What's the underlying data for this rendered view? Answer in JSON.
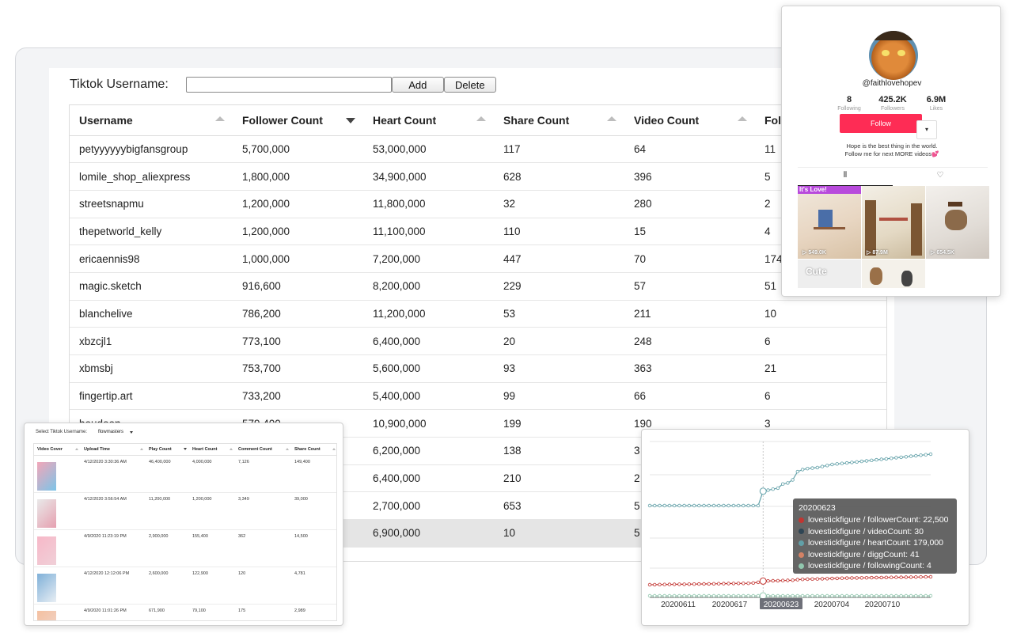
{
  "form": {
    "label": "Tiktok Username:",
    "input_value": "",
    "input_placeholder": "",
    "add_label": "Add",
    "delete_label": "Delete"
  },
  "users_table": {
    "columns": [
      "Username",
      "Follower Count",
      "Heart Count",
      "Share Count",
      "Video Count",
      "Fol"
    ],
    "rows": [
      [
        "petyyyyyybigfansgroup",
        "5,700,000",
        "53,000,000",
        "117",
        "64",
        "11"
      ],
      [
        "lomile_shop_aliexpress",
        "1,800,000",
        "34,900,000",
        "628",
        "396",
        "5"
      ],
      [
        "streetsnapmu",
        "1,200,000",
        "11,800,000",
        "32",
        "280",
        "2"
      ],
      [
        "thepetworld_kelly",
        "1,200,000",
        "11,100,000",
        "110",
        "15",
        "4"
      ],
      [
        "ericaennis98",
        "1,000,000",
        "7,200,000",
        "447",
        "70",
        "174"
      ],
      [
        "magic.sketch",
        "916,600",
        "8,200,000",
        "229",
        "57",
        "51"
      ],
      [
        "blanchelive",
        "786,200",
        "11,200,000",
        "53",
        "211",
        "10"
      ],
      [
        "xbzcjl1",
        "773,100",
        "6,400,000",
        "20",
        "248",
        "6"
      ],
      [
        "xbmsbj",
        "753,700",
        "5,600,000",
        "93",
        "363",
        "21"
      ],
      [
        "fingertip.art",
        "733,200",
        "5,400,000",
        "99",
        "66",
        "6"
      ],
      [
        "boudoon",
        "579,400",
        "10,900,000",
        "199",
        "190",
        "3"
      ],
      [
        "",
        "",
        "6,200,000",
        "138",
        "3",
        ""
      ],
      [
        "",
        "",
        "6,400,000",
        "210",
        "2",
        ""
      ],
      [
        "",
        "",
        "2,700,000",
        "653",
        "5",
        ""
      ],
      [
        "",
        "",
        "6,900,000",
        "10",
        "5",
        ""
      ]
    ],
    "selected_row": 14
  },
  "profile": {
    "handle": "@faithlovehopev",
    "stats": [
      {
        "value": "8",
        "label": "Following"
      },
      {
        "value": "425.2K",
        "label": "Followers"
      },
      {
        "value": "6.9M",
        "label": "Likes"
      }
    ],
    "follow_label": "Follow",
    "more_label": "▾",
    "bio_line1": "Hope is the best thing in the world.",
    "bio_line2": "Follow me for next MORE videos💕",
    "videos": [
      {
        "plays": "549.0K",
        "overlay": "It's Love!"
      },
      {
        "plays": "87.9M",
        "overlay": ""
      },
      {
        "plays": "654.5K",
        "overlay": ""
      },
      {
        "plays": "",
        "overlay": "Cute"
      },
      {
        "plays": "",
        "overlay": ""
      },
      {
        "plays": "",
        "overlay": ""
      }
    ]
  },
  "video_table": {
    "select_label": "Select Tiktok Username:",
    "selected_username": "flowmasters",
    "columns": [
      "Video Cover",
      "Upload Time",
      "Play Count",
      "Heart Count",
      "Comment Count",
      "Share Count"
    ],
    "rows": [
      [
        "",
        "4/12/2020 3:30:36 AM",
        "46,400,000",
        "4,000,000",
        "7,126",
        "149,400"
      ],
      [
        "",
        "4/12/2020 3:56:54 AM",
        "11,200,000",
        "1,200,000",
        "3,349",
        "39,000"
      ],
      [
        "",
        "4/9/2020 11:23:19 PM",
        "2,900,000",
        "155,400",
        "362",
        "14,500"
      ],
      [
        "",
        "4/12/2020 12:12:06 PM",
        "2,600,000",
        "122,900",
        "120",
        "4,781"
      ],
      [
        "",
        "4/9/2020 11:01:26 PM",
        "671,900",
        "79,100",
        "175",
        "2,989"
      ]
    ]
  },
  "chart_data": {
    "type": "line",
    "x_ticks": [
      "20200611",
      "20200617",
      "20200623",
      "20200704",
      "20200710"
    ],
    "highlight_x": "20200623",
    "series": [
      {
        "name": "lovestickfigure / followerCount",
        "color": "#c23531"
      },
      {
        "name": "lovestickfigure / videoCount",
        "color": "#2f4554"
      },
      {
        "name": "lovestickfigure / heartCount",
        "color": "#61a0a8"
      },
      {
        "name": "lovestickfigure / diggCount",
        "color": "#d48265"
      },
      {
        "name": "lovestickfigure / followingCount",
        "color": "#91c7ae"
      }
    ],
    "tooltip": {
      "title": "20200623",
      "rows": [
        {
          "label": "lovestickfigure / followerCount: 22,500",
          "color": "#c23531"
        },
        {
          "label": "lovestickfigure / videoCount: 30",
          "color": "#2f4554"
        },
        {
          "label": "lovestickfigure / heartCount: 179,000",
          "color": "#61a0a8"
        },
        {
          "label": "lovestickfigure / diggCount: 41",
          "color": "#d48265"
        },
        {
          "label": "lovestickfigure / followingCount: 4",
          "color": "#91c7ae"
        }
      ]
    },
    "heart_trend": [
      165000,
      165000,
      165000,
      165000,
      165000,
      165000,
      165000,
      165000,
      165000,
      165000,
      165000,
      165000,
      165000,
      165000,
      165000,
      165000,
      165000,
      165000,
      165000,
      165000,
      165000,
      165000,
      165000,
      179000,
      180000,
      181000,
      182000,
      186000,
      187000,
      190000,
      198000,
      200000,
      201000,
      201500,
      202000,
      203000,
      204000,
      205000,
      205500,
      206000,
      206500,
      207000,
      207500,
      208000,
      208500,
      209000,
      209500,
      210000,
      210500,
      211000,
      211500,
      212000,
      212500,
      213000,
      213500,
      214000,
      214500,
      215000
    ],
    "follower_trend": [
      20000,
      20050,
      20100,
      20150,
      20200,
      20250,
      20300,
      20350,
      20400,
      20450,
      20500,
      20550,
      20600,
      20650,
      20700,
      20750,
      20800,
      20850,
      20900,
      20950,
      21000,
      21200,
      21700,
      22500,
      22600,
      22700,
      22800,
      22900,
      23000,
      23100,
      23500,
      23700,
      23800,
      23900,
      24000,
      24100,
      24200,
      24300,
      24400,
      24500,
      24600,
      24650,
      24700,
      24750,
      24800,
      24850,
      24900,
      24950,
      25000,
      25050,
      25100,
      25150,
      25200,
      25250,
      25300,
      25350,
      25400,
      25450
    ],
    "following_trend": [
      4,
      4,
      4,
      4,
      4,
      4,
      4,
      4,
      4,
      4,
      4,
      4,
      4,
      4,
      4,
      4,
      4,
      4,
      4,
      4,
      4,
      4,
      4,
      4,
      4,
      4,
      4,
      4,
      4,
      4,
      4,
      4,
      4,
      4,
      4,
      4,
      4,
      4,
      4,
      4,
      4,
      4,
      4,
      4,
      4,
      4,
      4,
      4,
      4,
      4,
      4,
      4,
      4,
      4,
      4,
      4,
      4,
      4
    ]
  }
}
